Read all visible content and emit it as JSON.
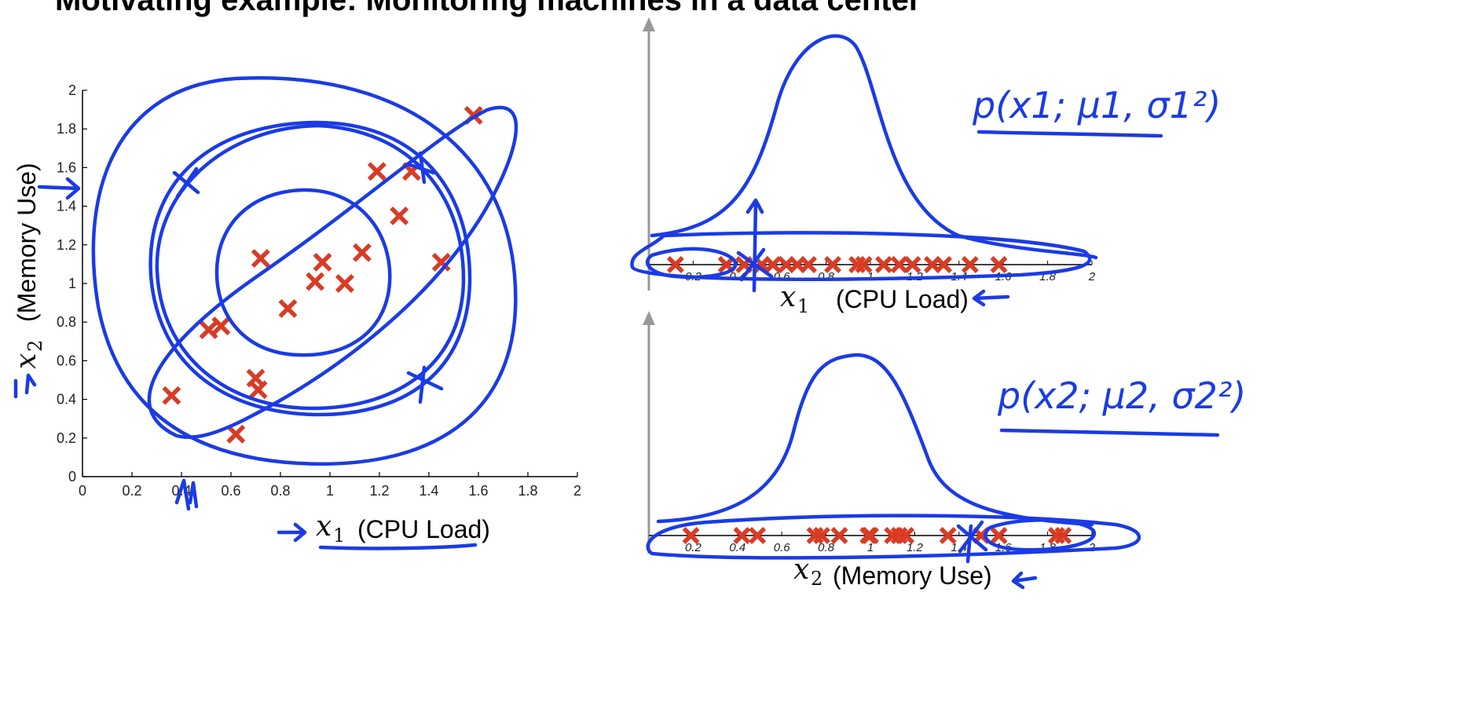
{
  "slide": {
    "title": "Motivating example: Monitoring machines in a data center"
  },
  "colors": {
    "marker": "#d93b25",
    "ink": "#1a3be6",
    "axis": "#999999"
  },
  "chart_data": [
    {
      "type": "scatter",
      "title": "",
      "xlabel": "x1 (CPU Load)",
      "ylabel": "x2 (Memory Use)",
      "xlim": [
        0,
        2
      ],
      "ylim": [
        0,
        2
      ],
      "xticks": [
        "0",
        "0.2",
        "0.4",
        "0.6",
        "0.8",
        "1",
        "1.2",
        "1.4",
        "1.6",
        "1.8",
        "2"
      ],
      "yticks": [
        "0",
        "0.2",
        "0.4",
        "0.6",
        "0.8",
        "1",
        "1.2",
        "1.4",
        "1.6",
        "1.8",
        "2"
      ],
      "grid": false,
      "points": [
        [
          0.36,
          0.42
        ],
        [
          0.51,
          0.76
        ],
        [
          0.56,
          0.78
        ],
        [
          0.62,
          0.22
        ],
        [
          0.7,
          0.51
        ],
        [
          0.71,
          0.45
        ],
        [
          0.72,
          1.13
        ],
        [
          0.83,
          0.87
        ],
        [
          0.94,
          1.01
        ],
        [
          0.97,
          1.11
        ],
        [
          1.06,
          1.0
        ],
        [
          1.13,
          1.16
        ],
        [
          1.19,
          1.58
        ],
        [
          1.28,
          1.35
        ],
        [
          1.33,
          1.58
        ],
        [
          1.45,
          1.11
        ],
        [
          1.58,
          1.87
        ]
      ],
      "annotated_points": [
        [
          0.43,
          1.53
        ],
        [
          1.38,
          0.47
        ]
      ]
    },
    {
      "type": "scatter",
      "xlabel": "x1 (CPU Load)",
      "xlim": [
        0,
        2
      ],
      "xticks": [
        "0.2",
        "0.4",
        "0.6",
        "0.8",
        "1",
        "1.2",
        "1.4",
        "1.6",
        "1.8",
        "2"
      ],
      "values": [
        0.12,
        0.35,
        0.43,
        0.51,
        0.56,
        0.62,
        0.67,
        0.72,
        0.83,
        0.94,
        0.97,
        1.06,
        1.13,
        1.19,
        1.28,
        1.33,
        1.45,
        1.58
      ],
      "annotated_points": [
        0.5
      ],
      "annotation": "p(x1; μ1, σ1²)"
    },
    {
      "type": "scatter",
      "xlabel": "x2 (Memory Use)",
      "xlim": [
        0,
        2
      ],
      "xticks": [
        "0.2",
        "0.4",
        "0.6",
        "0.8",
        "1",
        "1.2",
        "1.4",
        "1.6",
        "1.8",
        "2"
      ],
      "values": [
        0.19,
        0.42,
        0.49,
        0.75,
        0.78,
        0.86,
        0.99,
        1.0,
        1.1,
        1.13,
        1.16,
        1.35,
        1.5,
        1.58,
        1.84,
        1.87
      ],
      "annotated_points": [
        1.47
      ],
      "annotation": "p(x2; μ2, σ2²)"
    }
  ]
}
